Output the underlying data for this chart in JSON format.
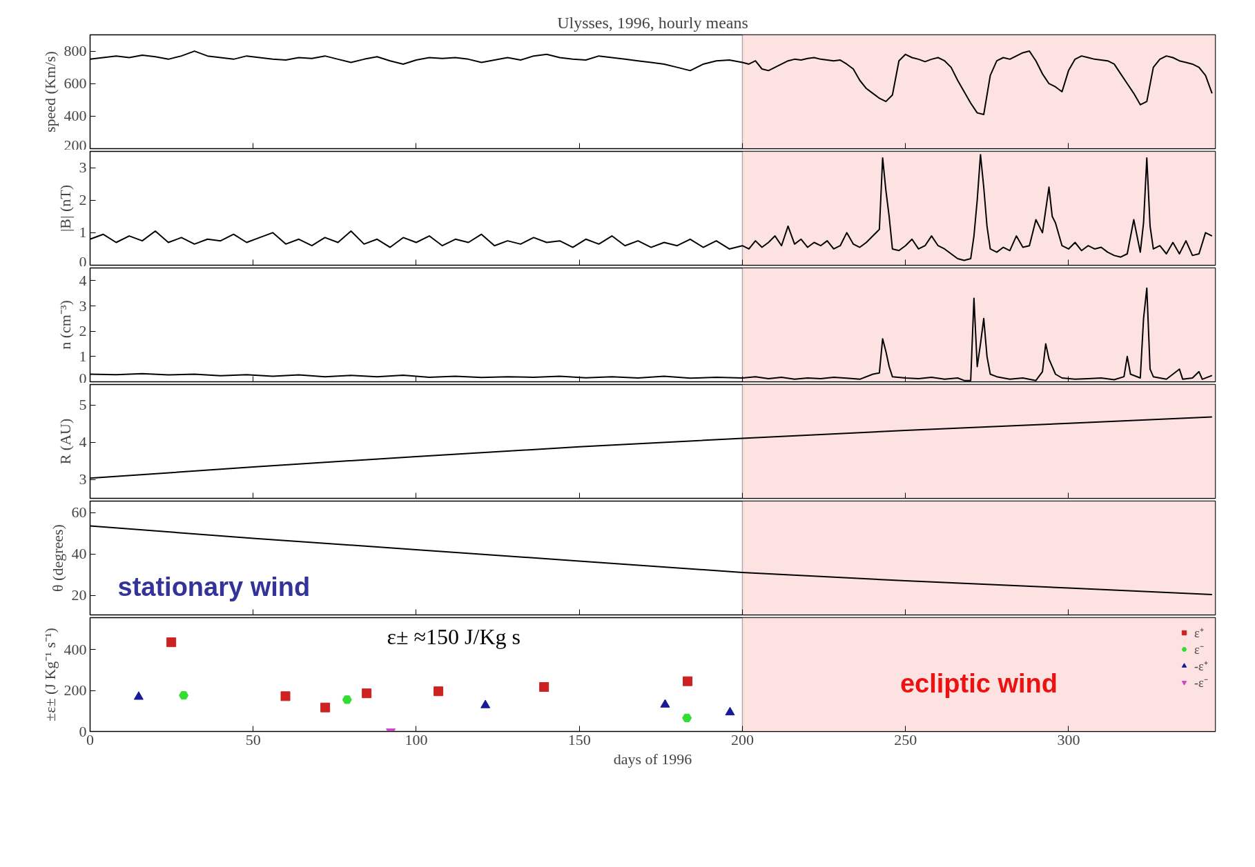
{
  "chart_data": [
    {
      "type": "line",
      "title": "Ulysses, 1996, hourly means",
      "ylabel": "speed (Km/s)",
      "xlim": [
        0,
        345
      ],
      "xticks": [
        0,
        50,
        100,
        150,
        200,
        250,
        300
      ],
      "ylim": [
        200,
        900
      ],
      "yticks": [
        200,
        400,
        600,
        800
      ],
      "tick_labels": "y",
      "bands": [
        {
          "axis": "x",
          "from": 200,
          "to": 345,
          "color": "#fde2e2"
        }
      ],
      "series": [
        {
          "color": "#000000",
          "x": [
            0,
            4,
            8,
            12,
            16,
            20,
            24,
            28,
            32,
            36,
            40,
            44,
            48,
            52,
            56,
            60,
            64,
            68,
            72,
            76,
            80,
            84,
            88,
            92,
            96,
            100,
            104,
            108,
            112,
            116,
            120,
            124,
            128,
            132,
            136,
            140,
            144,
            148,
            152,
            156,
            160,
            164,
            168,
            172,
            176,
            180,
            184,
            188,
            192,
            196,
            200,
            202,
            204,
            206,
            208,
            210,
            212,
            214,
            216,
            218,
            220,
            222,
            224,
            226,
            228,
            230,
            232,
            234,
            236,
            238,
            240,
            242,
            244,
            246,
            248,
            250,
            252,
            254,
            256,
            258,
            260,
            262,
            264,
            266,
            268,
            270,
            272,
            274,
            276,
            278,
            280,
            282,
            284,
            286,
            288,
            290,
            292,
            294,
            296,
            298,
            300,
            302,
            304,
            306,
            308,
            310,
            312,
            314,
            316,
            318,
            320,
            322,
            324,
            326,
            328,
            330,
            332,
            334,
            336,
            338,
            340,
            342,
            344
          ],
          "values": [
            750,
            760,
            770,
            760,
            775,
            765,
            750,
            770,
            800,
            770,
            760,
            750,
            770,
            760,
            750,
            745,
            760,
            755,
            770,
            750,
            730,
            750,
            765,
            740,
            720,
            745,
            760,
            755,
            760,
            750,
            730,
            745,
            760,
            745,
            770,
            780,
            760,
            750,
            745,
            770,
            760,
            750,
            740,
            730,
            720,
            700,
            680,
            720,
            740,
            745,
            730,
            720,
            740,
            690,
            680,
            700,
            720,
            740,
            750,
            745,
            755,
            760,
            750,
            745,
            740,
            745,
            720,
            690,
            620,
            570,
            540,
            510,
            490,
            530,
            740,
            780,
            760,
            750,
            735,
            750,
            760,
            740,
            700,
            620,
            550,
            480,
            420,
            410,
            650,
            740,
            760,
            750,
            770,
            790,
            800,
            740,
            660,
            600,
            580,
            550,
            680,
            750,
            770,
            760,
            750,
            745,
            740,
            720,
            660,
            600,
            540,
            470,
            490,
            700,
            750,
            770,
            760,
            740,
            730,
            720,
            700,
            650,
            540
          ]
        }
      ]
    },
    {
      "type": "line",
      "ylabel": "|B| (nT)",
      "xlim": [
        0,
        345
      ],
      "xticks": [
        0,
        50,
        100,
        150,
        200,
        250,
        300
      ],
      "ylim": [
        0,
        3.5
      ],
      "yticks": [
        0,
        1,
        2,
        3
      ],
      "tick_labels": "y",
      "bands": [
        {
          "axis": "x",
          "from": 200,
          "to": 345,
          "color": "#fde2e2"
        }
      ],
      "series": [
        {
          "color": "#000000",
          "x": [
            0,
            4,
            8,
            12,
            16,
            20,
            24,
            28,
            32,
            36,
            40,
            44,
            48,
            52,
            56,
            60,
            64,
            68,
            72,
            76,
            80,
            84,
            88,
            92,
            96,
            100,
            104,
            108,
            112,
            116,
            120,
            124,
            128,
            132,
            136,
            140,
            144,
            148,
            152,
            156,
            160,
            164,
            168,
            172,
            176,
            180,
            184,
            188,
            192,
            196,
            200,
            202,
            204,
            206,
            208,
            210,
            212,
            214,
            216,
            218,
            220,
            222,
            224,
            226,
            228,
            230,
            232,
            234,
            236,
            238,
            240,
            242,
            243,
            244,
            245,
            246,
            248,
            250,
            252,
            254,
            256,
            258,
            260,
            262,
            264,
            266,
            268,
            270,
            271,
            272,
            273,
            274,
            275,
            276,
            278,
            280,
            282,
            284,
            286,
            288,
            290,
            292,
            294,
            295,
            296,
            298,
            300,
            302,
            304,
            306,
            308,
            310,
            312,
            314,
            316,
            318,
            320,
            322,
            323,
            324,
            325,
            326,
            328,
            330,
            332,
            334,
            336,
            338,
            340,
            342,
            344
          ],
          "values": [
            0.8,
            0.95,
            0.7,
            0.9,
            0.75,
            1.05,
            0.7,
            0.85,
            0.65,
            0.8,
            0.75,
            0.95,
            0.7,
            0.85,
            1.0,
            0.65,
            0.8,
            0.6,
            0.85,
            0.7,
            1.05,
            0.65,
            0.8,
            0.55,
            0.85,
            0.7,
            0.9,
            0.6,
            0.8,
            0.7,
            0.95,
            0.6,
            0.75,
            0.65,
            0.85,
            0.7,
            0.75,
            0.55,
            0.8,
            0.65,
            0.9,
            0.6,
            0.75,
            0.55,
            0.7,
            0.6,
            0.8,
            0.55,
            0.75,
            0.5,
            0.6,
            0.5,
            0.75,
            0.55,
            0.7,
            0.9,
            0.6,
            1.2,
            0.65,
            0.8,
            0.55,
            0.7,
            0.6,
            0.75,
            0.5,
            0.6,
            1.0,
            0.65,
            0.55,
            0.7,
            0.9,
            1.1,
            3.3,
            2.3,
            1.5,
            0.5,
            0.45,
            0.6,
            0.8,
            0.5,
            0.6,
            0.9,
            0.6,
            0.5,
            0.35,
            0.2,
            0.15,
            0.2,
            0.9,
            2.0,
            3.4,
            2.4,
            1.2,
            0.5,
            0.4,
            0.55,
            0.45,
            0.9,
            0.55,
            0.6,
            1.4,
            1.0,
            2.4,
            1.5,
            1.3,
            0.6,
            0.5,
            0.7,
            0.45,
            0.6,
            0.5,
            0.55,
            0.4,
            0.3,
            0.25,
            0.35,
            1.4,
            0.4,
            1.3,
            3.3,
            1.2,
            0.5,
            0.6,
            0.35,
            0.7,
            0.35,
            0.75,
            0.3,
            0.35,
            1.0,
            0.9
          ]
        }
      ]
    },
    {
      "type": "line",
      "ylabel": "n (cm⁻³)",
      "xlim": [
        0,
        345
      ],
      "xticks": [
        0,
        50,
        100,
        150,
        200,
        250,
        300
      ],
      "ylim": [
        0,
        4.5
      ],
      "yticks": [
        0,
        1,
        2,
        3,
        4
      ],
      "tick_labels": "y",
      "bands": [
        {
          "axis": "x",
          "from": 200,
          "to": 345,
          "color": "#fde2e2"
        }
      ],
      "series": [
        {
          "color": "#000000",
          "x": [
            0,
            8,
            16,
            24,
            32,
            40,
            48,
            56,
            64,
            72,
            80,
            88,
            96,
            104,
            112,
            120,
            128,
            136,
            144,
            152,
            160,
            168,
            176,
            184,
            192,
            200,
            204,
            208,
            212,
            216,
            220,
            224,
            228,
            232,
            236,
            240,
            242,
            243,
            244,
            245,
            246,
            250,
            254,
            258,
            262,
            266,
            268,
            270,
            271,
            272,
            273,
            274,
            275,
            276,
            278,
            282,
            286,
            290,
            292,
            293,
            294,
            296,
            298,
            302,
            306,
            310,
            314,
            317,
            318,
            319,
            322,
            323,
            324,
            325,
            326,
            330,
            334,
            335,
            338,
            340,
            341,
            344
          ],
          "values": [
            0.3,
            0.28,
            0.32,
            0.27,
            0.3,
            0.24,
            0.28,
            0.22,
            0.27,
            0.2,
            0.25,
            0.2,
            0.26,
            0.18,
            0.22,
            0.17,
            0.2,
            0.18,
            0.22,
            0.16,
            0.2,
            0.15,
            0.22,
            0.14,
            0.18,
            0.15,
            0.2,
            0.12,
            0.18,
            0.1,
            0.15,
            0.12,
            0.18,
            0.14,
            0.1,
            0.3,
            0.35,
            1.7,
            1.2,
            0.6,
            0.2,
            0.15,
            0.12,
            0.18,
            0.1,
            0.15,
            0.05,
            0.05,
            3.3,
            0.6,
            1.5,
            2.5,
            1.0,
            0.3,
            0.2,
            0.1,
            0.15,
            0.05,
            0.4,
            1.5,
            0.9,
            0.3,
            0.15,
            0.1,
            0.12,
            0.15,
            0.08,
            0.2,
            1.0,
            0.3,
            0.15,
            2.5,
            3.7,
            0.5,
            0.2,
            0.1,
            0.5,
            0.1,
            0.15,
            0.4,
            0.1,
            0.25
          ]
        }
      ]
    },
    {
      "type": "line",
      "ylabel": "R (AU)",
      "xlim": [
        0,
        345
      ],
      "xticks": [
        0,
        50,
        100,
        150,
        200,
        250,
        300
      ],
      "ylim": [
        2.5,
        5.55
      ],
      "yticks": [
        3,
        4,
        5
      ],
      "tick_labels": "y",
      "bands": [
        {
          "axis": "x",
          "from": 200,
          "to": 345,
          "color": "#fde2e2"
        }
      ],
      "series": [
        {
          "color": "#000000",
          "x": [
            0,
            50,
            100,
            150,
            200,
            250,
            300,
            344
          ],
          "values": [
            3.04,
            3.34,
            3.62,
            3.88,
            4.11,
            4.32,
            4.51,
            4.68
          ]
        }
      ]
    },
    {
      "type": "line",
      "ylabel": "θ (degrees)",
      "xlim": [
        0,
        345
      ],
      "xticks": [
        0,
        50,
        100,
        150,
        200,
        250,
        300
      ],
      "ylim": [
        10.5,
        65.5
      ],
      "yticks": [
        20,
        40,
        60
      ],
      "tick_labels": "y",
      "bands": [
        {
          "axis": "x",
          "from": 200,
          "to": 345,
          "color": "#fde2e2"
        }
      ],
      "annotations": [
        "stationary wind"
      ],
      "series": [
        {
          "color": "#000000",
          "x": [
            0,
            50,
            100,
            150,
            200,
            250,
            300,
            344
          ],
          "values": [
            53.5,
            47.5,
            42,
            36.5,
            31,
            27,
            23.5,
            20.3
          ]
        }
      ]
    },
    {
      "type": "scatter",
      "xlabel": "days of 1996",
      "ylabel": "±ε± (J Kg⁻¹ s⁻¹)",
      "xlim": [
        0,
        345
      ],
      "xticks": [
        0,
        50,
        100,
        150,
        200,
        250,
        300
      ],
      "ylim": [
        0,
        555
      ],
      "yticks": [
        0,
        200,
        400
      ],
      "bands": [
        {
          "axis": "x",
          "from": 200,
          "to": 345,
          "color": "#fde2e2",
          "label": "ecliptic wind"
        }
      ],
      "annotations": [
        "ε± ≈150  J/Kg s"
      ],
      "legend": "top right",
      "series": [
        {
          "name": "ε⁺",
          "color": "#cc2222",
          "marker": "square",
          "x": [
            24.9,
            59.9,
            72.1,
            84.8,
            106.8,
            139.2,
            183.2
          ],
          "values": [
            435,
            172,
            117,
            186,
            196,
            217,
            245
          ]
        },
        {
          "name": "ε⁻",
          "color": "#33dd33",
          "marker": "circle",
          "x": [
            28.7,
            78.8,
            183
          ],
          "values": [
            176,
            155,
            66
          ]
        },
        {
          "name": "-ε⁺",
          "color": "#1a1a99",
          "marker": "triangle",
          "x": [
            14.9,
            121.2,
            176.3,
            196.2
          ],
          "values": [
            169,
            128,
            131,
            93
          ]
        },
        {
          "name": "-ε⁻",
          "color": "#cc44cc",
          "marker": "triangle_down",
          "x": [
            92.2
          ],
          "values": [
            0
          ]
        }
      ]
    }
  ]
}
